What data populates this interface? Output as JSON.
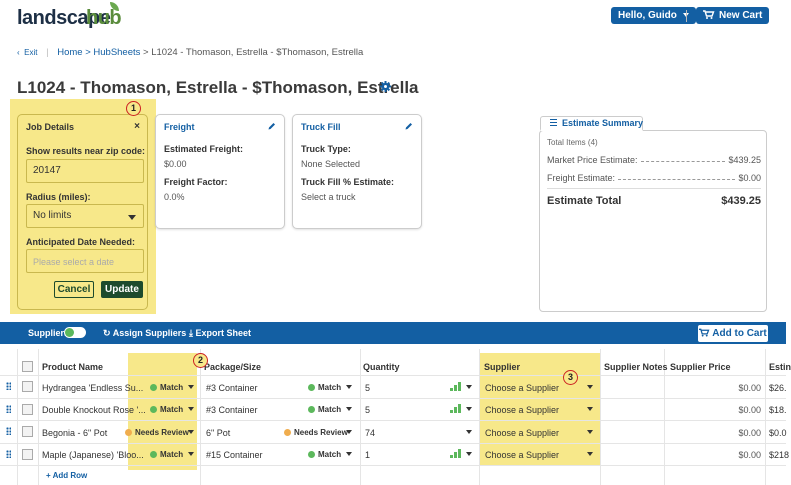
{
  "header": {
    "logo_part1": "landscape",
    "logo_part2": "hub",
    "user_menu_label": "Hello, Guido",
    "new_cart_label": "New Cart"
  },
  "breadcrumb": {
    "exit_label": "Exit",
    "trail": "Home > HubSheets",
    "current": " > L1024 - Thomason, Estrella - $Thomason, Estrella"
  },
  "page_title": "L1024 - Thomason, Estrella - $Thomason, Estrella",
  "job_details": {
    "title": "Job Details",
    "close_label": "×",
    "zip_label": "Show results near zip code:",
    "zip_value": "20147",
    "radius_label": "Radius (miles):",
    "radius_value": "No limits",
    "date_label": "Anticipated Date Needed:",
    "date_placeholder": "Please select a date",
    "cancel_label": "Cancel",
    "update_label": "Update"
  },
  "freight": {
    "title": "Freight",
    "estimated_label": "Estimated Freight:",
    "estimated_value": "$0.00",
    "factor_label": "Freight Factor:",
    "factor_value": "0.0%"
  },
  "truck_fill": {
    "title": "Truck Fill",
    "type_label": "Truck Type:",
    "type_value": "None Selected",
    "estimate_label": "Truck Fill % Estimate:",
    "estimate_value": "Select a truck"
  },
  "estimate_summary": {
    "tab_label": "Estimate Summary",
    "total_items": "Total Items (4)",
    "market_label": "Market Price Estimate:",
    "market_value": "$439.25",
    "freight_label": "Freight Estimate:",
    "freight_value": "$0.00",
    "total_label": "Estimate Total",
    "total_value": "$439.25"
  },
  "toolbar": {
    "suppliers_label": "Suppliers",
    "assign_label": "Assign Suppliers",
    "export_label": "Export Sheet",
    "add_to_cart_label": "Add to Cart"
  },
  "grid": {
    "columns": [
      "Product Name",
      "Package/Size",
      "Quantity",
      "Supplier",
      "Supplier Notes",
      "Supplier Price",
      "Estin"
    ],
    "rows": [
      {
        "product": "Hydrangea 'Endless Su...",
        "match": "Match",
        "package": "#3 Container",
        "package_match": "Match",
        "quantity": "5",
        "supplier": "Choose a Supplier",
        "price": "$0.00",
        "estimate": "$26."
      },
      {
        "product": "Double Knockout Rose '...",
        "match": "Match",
        "package": "#3 Container",
        "package_match": "Match",
        "quantity": "5",
        "supplier": "Choose a Supplier",
        "price": "$0.00",
        "estimate": "$18."
      },
      {
        "product": "Begonia - 6\" Pot",
        "match": "Needs Review",
        "package": "6\" Pot",
        "package_match": "Needs Review",
        "quantity": "74",
        "supplier": "Choose a Supplier",
        "price": "$0.00",
        "estimate": "$0.0"
      },
      {
        "product": "Maple (Japanese) 'Bloo...",
        "match": "Match",
        "package": "#15 Container",
        "package_match": "Match",
        "quantity": "1",
        "supplier": "Choose a Supplier",
        "price": "$0.00",
        "estimate": "$218"
      }
    ],
    "add_row_label": "Add Row"
  },
  "callouts": [
    "1",
    "2",
    "3"
  ],
  "colors": {
    "brand_blue": "#135fa3",
    "highlight_yellow": "#f7e88a",
    "match_green": "#5cb85c",
    "review_orange": "#f0ad4e",
    "update_green": "#1d4a2d"
  }
}
